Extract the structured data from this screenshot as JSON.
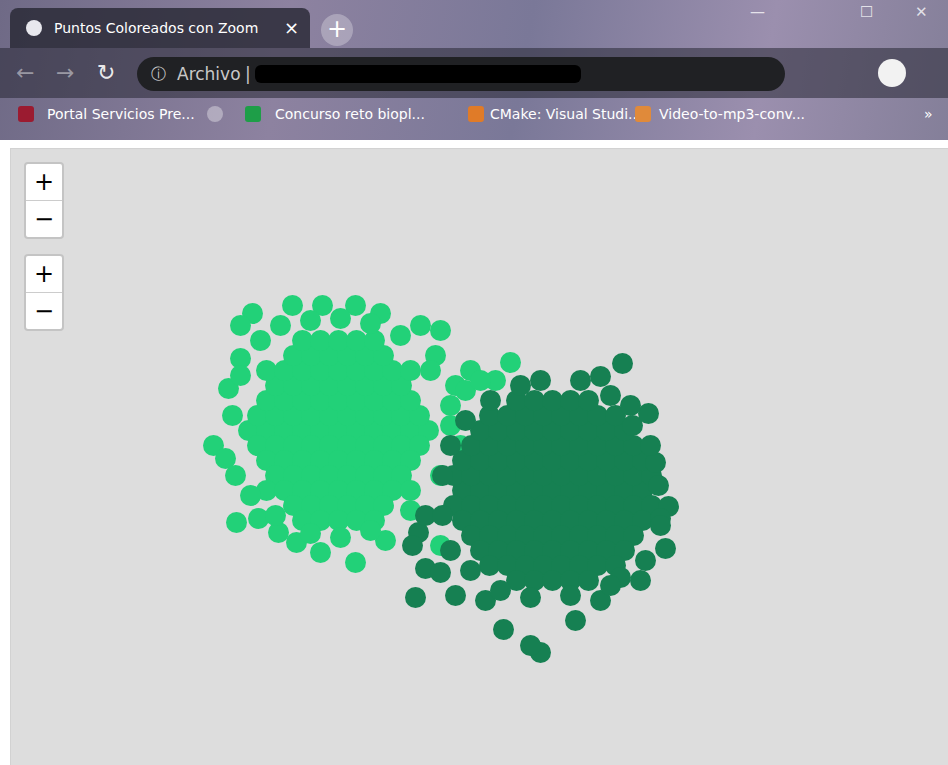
{
  "browser": {
    "tab": {
      "title": "Puntos Coloreados con Zoom",
      "close": "×"
    },
    "new_tab": "+",
    "window_controls": [
      "—",
      "☐",
      "✕"
    ],
    "navigation": [
      "←",
      "→",
      "↻"
    ],
    "address": {
      "info": "ⓘ",
      "label": "Archivo",
      "separator": "|"
    },
    "bookmarks": [
      "Portal Servicios Pre...",
      "Concurso reto biopl...",
      "CMake: Visual Studi...",
      "Video-to-mp3-conv..."
    ],
    "more_bookmarks": "»"
  },
  "zoom_controls": [
    [
      "+",
      "−"
    ],
    [
      "+",
      "−"
    ]
  ],
  "chart_data": {
    "type": "scatter",
    "tick_labels": false,
    "xlim": [
      0,
      938
    ],
    "ylim": [
      0,
      617
    ],
    "series": [
      {
        "color": "#22d178",
        "points": [
          [
            238,
            335
          ],
          [
            256,
            335
          ],
          [
            274,
            335
          ],
          [
            292,
            335
          ],
          [
            310,
            335
          ],
          [
            328,
            335
          ],
          [
            346,
            335
          ],
          [
            364,
            335
          ],
          [
            382,
            335
          ],
          [
            400,
            335
          ],
          [
            418,
            335
          ],
          [
            247,
            350
          ],
          [
            265,
            350
          ],
          [
            283,
            350
          ],
          [
            301,
            350
          ],
          [
            319,
            350
          ],
          [
            337,
            350
          ],
          [
            355,
            350
          ],
          [
            373,
            350
          ],
          [
            391,
            350
          ],
          [
            409,
            350
          ],
          [
            247,
            320
          ],
          [
            265,
            320
          ],
          [
            283,
            320
          ],
          [
            301,
            320
          ],
          [
            319,
            320
          ],
          [
            337,
            320
          ],
          [
            355,
            320
          ],
          [
            373,
            320
          ],
          [
            391,
            320
          ],
          [
            409,
            320
          ],
          [
            256,
            365
          ],
          [
            274,
            365
          ],
          [
            292,
            365
          ],
          [
            310,
            365
          ],
          [
            328,
            365
          ],
          [
            346,
            365
          ],
          [
            364,
            365
          ],
          [
            382,
            365
          ],
          [
            400,
            365
          ],
          [
            256,
            305
          ],
          [
            274,
            305
          ],
          [
            292,
            305
          ],
          [
            310,
            305
          ],
          [
            328,
            305
          ],
          [
            346,
            305
          ],
          [
            364,
            305
          ],
          [
            382,
            305
          ],
          [
            400,
            305
          ],
          [
            265,
            380
          ],
          [
            283,
            380
          ],
          [
            301,
            380
          ],
          [
            319,
            380
          ],
          [
            337,
            380
          ],
          [
            355,
            380
          ],
          [
            373,
            380
          ],
          [
            391,
            380
          ],
          [
            265,
            290
          ],
          [
            283,
            290
          ],
          [
            301,
            290
          ],
          [
            319,
            290
          ],
          [
            337,
            290
          ],
          [
            355,
            290
          ],
          [
            373,
            290
          ],
          [
            391,
            290
          ],
          [
            256,
            395
          ],
          [
            274,
            395
          ],
          [
            292,
            395
          ],
          [
            310,
            395
          ],
          [
            328,
            395
          ],
          [
            346,
            395
          ],
          [
            364,
            395
          ],
          [
            382,
            395
          ],
          [
            400,
            395
          ],
          [
            256,
            275
          ],
          [
            274,
            275
          ],
          [
            292,
            275
          ],
          [
            310,
            275
          ],
          [
            328,
            275
          ],
          [
            346,
            275
          ],
          [
            364,
            275
          ],
          [
            382,
            275
          ],
          [
            400,
            275
          ],
          [
            283,
            410
          ],
          [
            301,
            410
          ],
          [
            319,
            410
          ],
          [
            337,
            410
          ],
          [
            355,
            410
          ],
          [
            373,
            410
          ],
          [
            283,
            260
          ],
          [
            301,
            260
          ],
          [
            319,
            260
          ],
          [
            337,
            260
          ],
          [
            355,
            260
          ],
          [
            373,
            260
          ],
          [
            292,
            425
          ],
          [
            310,
            425
          ],
          [
            328,
            425
          ],
          [
            346,
            425
          ],
          [
            364,
            425
          ],
          [
            292,
            245
          ],
          [
            310,
            245
          ],
          [
            328,
            245
          ],
          [
            346,
            245
          ],
          [
            364,
            245
          ],
          [
            242,
            452
          ],
          [
            282,
            460
          ],
          [
            312,
            460
          ],
          [
            345,
            460
          ],
          [
            370,
            452
          ],
          [
            230,
            440
          ],
          [
            430,
            435
          ],
          [
            410,
            440
          ],
          [
            230,
            407
          ],
          [
            218,
            377
          ],
          [
            203,
            320
          ],
          [
            215,
            307
          ],
          [
            226,
            243
          ],
          [
            248,
            247
          ],
          [
            268,
            233
          ],
          [
            286,
            223
          ],
          [
            310,
            213
          ],
          [
            345,
            203
          ],
          [
            375,
            225
          ],
          [
            460,
            395
          ],
          [
            485,
            385
          ],
          [
            500,
            403
          ],
          [
            430,
            220
          ],
          [
            270,
            440
          ],
          [
            300,
            445
          ],
          [
            330,
            447
          ],
          [
            360,
            442
          ],
          [
            390,
            430
          ],
          [
            250,
            425
          ],
          [
            230,
            390
          ],
          [
            222,
            350
          ],
          [
            225,
            290
          ],
          [
            240,
            270
          ],
          [
            265,
            250
          ],
          [
            300,
            232
          ],
          [
            330,
            228
          ],
          [
            360,
            235
          ],
          [
            400,
            255
          ],
          [
            430,
            290
          ],
          [
            440,
            340
          ],
          [
            445,
            380
          ],
          [
            425,
            410
          ],
          [
            440,
            360
          ],
          [
            455,
            375
          ],
          [
            470,
            385
          ],
          [
            450,
            320
          ],
          [
            420,
            395
          ]
        ]
      },
      {
        "color": "#168052",
        "points": [
          [
            452,
            275
          ],
          [
            470,
            275
          ],
          [
            488,
            275
          ],
          [
            506,
            275
          ],
          [
            524,
            275
          ],
          [
            542,
            275
          ],
          [
            560,
            275
          ],
          [
            578,
            275
          ],
          [
            596,
            275
          ],
          [
            614,
            275
          ],
          [
            632,
            275
          ],
          [
            443,
            290
          ],
          [
            461,
            290
          ],
          [
            479,
            290
          ],
          [
            497,
            290
          ],
          [
            515,
            290
          ],
          [
            533,
            290
          ],
          [
            551,
            290
          ],
          [
            569,
            290
          ],
          [
            587,
            290
          ],
          [
            605,
            290
          ],
          [
            623,
            290
          ],
          [
            641,
            290
          ],
          [
            443,
            260
          ],
          [
            461,
            260
          ],
          [
            479,
            260
          ],
          [
            497,
            260
          ],
          [
            515,
            260
          ],
          [
            533,
            260
          ],
          [
            551,
            260
          ],
          [
            569,
            260
          ],
          [
            587,
            260
          ],
          [
            605,
            260
          ],
          [
            623,
            260
          ],
          [
            641,
            260
          ],
          [
            452,
            305
          ],
          [
            470,
            305
          ],
          [
            488,
            305
          ],
          [
            506,
            305
          ],
          [
            524,
            305
          ],
          [
            542,
            305
          ],
          [
            560,
            305
          ],
          [
            578,
            305
          ],
          [
            596,
            305
          ],
          [
            614,
            305
          ],
          [
            632,
            305
          ],
          [
            452,
            245
          ],
          [
            470,
            245
          ],
          [
            488,
            245
          ],
          [
            506,
            245
          ],
          [
            524,
            245
          ],
          [
            542,
            245
          ],
          [
            560,
            245
          ],
          [
            578,
            245
          ],
          [
            596,
            245
          ],
          [
            614,
            245
          ],
          [
            632,
            245
          ],
          [
            461,
            320
          ],
          [
            479,
            320
          ],
          [
            497,
            320
          ],
          [
            515,
            320
          ],
          [
            533,
            320
          ],
          [
            551,
            320
          ],
          [
            569,
            320
          ],
          [
            587,
            320
          ],
          [
            605,
            320
          ],
          [
            623,
            320
          ],
          [
            461,
            230
          ],
          [
            479,
            230
          ],
          [
            497,
            230
          ],
          [
            515,
            230
          ],
          [
            533,
            230
          ],
          [
            551,
            230
          ],
          [
            569,
            230
          ],
          [
            587,
            230
          ],
          [
            605,
            230
          ],
          [
            623,
            230
          ],
          [
            470,
            335
          ],
          [
            488,
            335
          ],
          [
            506,
            335
          ],
          [
            524,
            335
          ],
          [
            542,
            335
          ],
          [
            560,
            335
          ],
          [
            578,
            335
          ],
          [
            596,
            335
          ],
          [
            614,
            335
          ],
          [
            470,
            215
          ],
          [
            488,
            215
          ],
          [
            506,
            215
          ],
          [
            524,
            215
          ],
          [
            542,
            215
          ],
          [
            560,
            215
          ],
          [
            578,
            215
          ],
          [
            596,
            215
          ],
          [
            614,
            215
          ],
          [
            479,
            350
          ],
          [
            497,
            350
          ],
          [
            515,
            350
          ],
          [
            533,
            350
          ],
          [
            551,
            350
          ],
          [
            569,
            350
          ],
          [
            587,
            350
          ],
          [
            605,
            350
          ],
          [
            479,
            200
          ],
          [
            497,
            200
          ],
          [
            515,
            200
          ],
          [
            533,
            200
          ],
          [
            551,
            200
          ],
          [
            569,
            200
          ],
          [
            587,
            200
          ],
          [
            605,
            200
          ],
          [
            506,
            365
          ],
          [
            524,
            365
          ],
          [
            542,
            365
          ],
          [
            560,
            365
          ],
          [
            578,
            365
          ],
          [
            506,
            185
          ],
          [
            524,
            185
          ],
          [
            542,
            185
          ],
          [
            560,
            185
          ],
          [
            578,
            185
          ],
          [
            612,
            402
          ],
          [
            590,
            389
          ],
          [
            570,
            385
          ],
          [
            530,
            385
          ],
          [
            510,
            380
          ],
          [
            622,
            340
          ],
          [
            638,
            352
          ],
          [
            645,
            303
          ],
          [
            658,
            259
          ],
          [
            655,
            217
          ],
          [
            650,
            247
          ],
          [
            630,
            185
          ],
          [
            610,
            188
          ],
          [
            565,
            145
          ],
          [
            530,
            113
          ],
          [
            520,
            120
          ],
          [
            493,
            136
          ],
          [
            475,
            165
          ],
          [
            405,
            168
          ],
          [
            415,
            197
          ],
          [
            430,
            193
          ],
          [
            408,
            233
          ],
          [
            402,
            220
          ],
          [
            415,
            250
          ],
          [
            445,
            170
          ],
          [
            590,
            165
          ],
          [
            600,
            370
          ],
          [
            620,
            360
          ],
          [
            640,
            320
          ],
          [
            648,
            280
          ],
          [
            650,
            240
          ],
          [
            635,
            205
          ],
          [
            600,
            180
          ],
          [
            560,
            170
          ],
          [
            520,
            168
          ],
          [
            490,
            175
          ],
          [
            460,
            195
          ],
          [
            440,
            215
          ],
          [
            432,
            250
          ],
          [
            432,
            290
          ],
          [
            440,
            320
          ],
          [
            455,
            345
          ],
          [
            480,
            365
          ]
        ]
      }
    ]
  }
}
